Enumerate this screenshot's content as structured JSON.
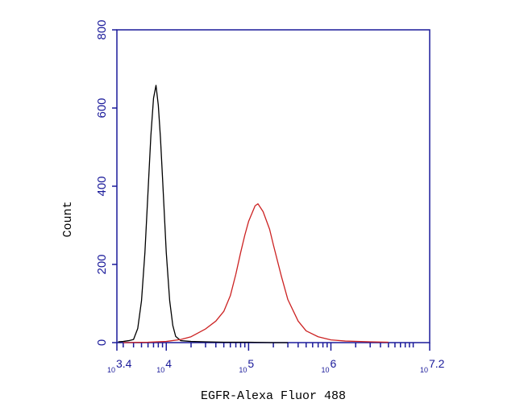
{
  "chart_data": {
    "type": "line",
    "xlabel": "EGFR-Alexa Fluor 488",
    "ylabel": "Count",
    "xscale": "log",
    "xlim": [
      2511.886,
      15848931.92
    ],
    "ylim": [
      0,
      800
    ],
    "yticks": [
      0,
      200,
      400,
      600,
      800
    ],
    "xticks": [
      {
        "value": 2511.886,
        "label": {
          "base": "10",
          "exponent": "3.4"
        }
      },
      {
        "value": 10000,
        "label": {
          "base": "10",
          "exponent": "4"
        }
      },
      {
        "value": 100000,
        "label": {
          "base": "10",
          "exponent": "5"
        }
      },
      {
        "value": 1000000,
        "label": {
          "base": "10",
          "exponent": "6"
        }
      },
      {
        "value": 15848931.92,
        "label": {
          "base": "10",
          "exponent": "7.2"
        }
      }
    ],
    "xminorticks": [
      3000,
      4000,
      5000,
      6000,
      7000,
      8000,
      9000,
      20000,
      30000,
      40000,
      50000,
      60000,
      70000,
      80000,
      90000,
      200000,
      300000,
      400000,
      500000,
      600000,
      700000,
      800000,
      900000,
      2000000,
      3000000,
      4000000,
      5000000,
      6000000,
      7000000,
      8000000,
      9000000,
      10000000
    ],
    "axis_color": "#1a1a9a",
    "series": [
      {
        "color": "#000000",
        "x": [
          2600,
          3000,
          3500,
          4000,
          4500,
          5000,
          5500,
          6000,
          6500,
          7000,
          7500,
          8000,
          8500,
          9000,
          10000,
          11000,
          12000,
          13000,
          15000,
          20000,
          30000,
          50000,
          100000,
          200000,
          300000
        ],
        "values": [
          2,
          3,
          5,
          8,
          36,
          107,
          230,
          386,
          530,
          625,
          658,
          607,
          523,
          422,
          230,
          107,
          44,
          16,
          5,
          3,
          2,
          1,
          1,
          0,
          0
        ]
      },
      {
        "color": "#cc2222",
        "x": [
          3000,
          6000,
          10000,
          15000,
          20000,
          30000,
          40000,
          50000,
          60000,
          70000,
          80000,
          90000,
          100000,
          120000,
          130000,
          150000,
          180000,
          200000,
          250000,
          300000,
          400000,
          500000,
          700000,
          1000000,
          1500000,
          3000000,
          5000000
        ],
        "values": [
          0,
          1,
          3,
          8,
          15,
          35,
          55,
          80,
          120,
          175,
          230,
          275,
          310,
          350,
          355,
          335,
          290,
          250,
          170,
          110,
          55,
          30,
          15,
          7,
          4,
          2,
          1
        ]
      }
    ]
  }
}
